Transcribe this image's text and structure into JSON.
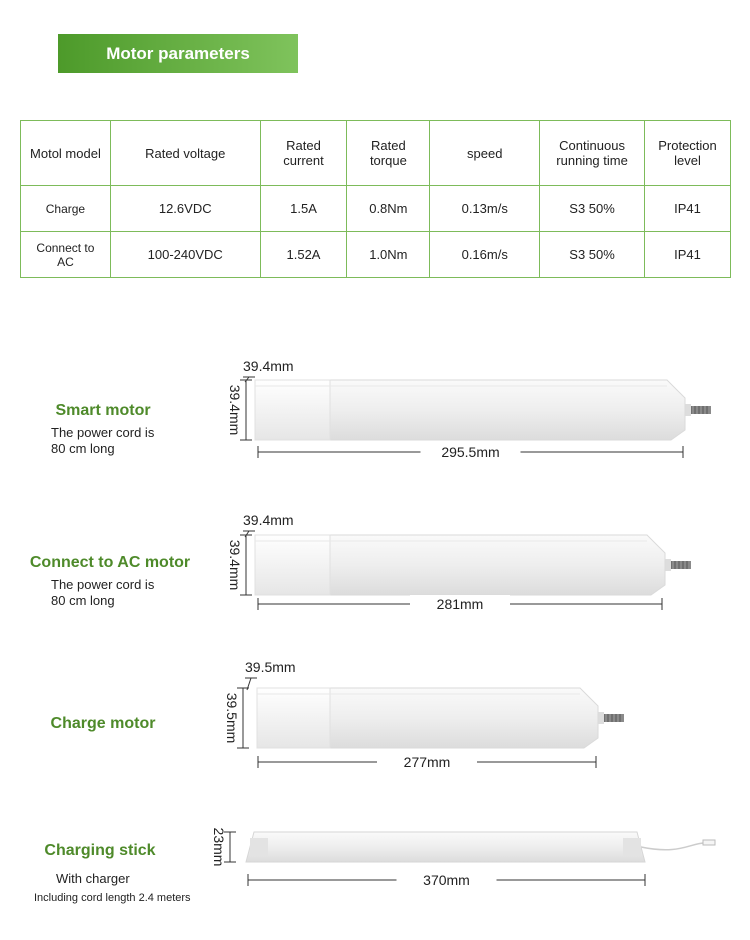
{
  "header": {
    "title": "Motor parameters"
  },
  "table": {
    "columns": [
      "Motol model",
      "Rated voltage",
      "Rated current",
      "Rated torque",
      "speed",
      "Continuous running time",
      "Protection level"
    ],
    "rows": [
      [
        "Charge",
        "12.6VDC",
        "1.5A",
        "0.8Nm",
        "0.13m/s",
        "S3 50%",
        "IP41"
      ],
      [
        "Connect to AC",
        "100-240VDC",
        "1.52A",
        "1.0Nm",
        "0.16m/s",
        "S3 50%",
        "IP41"
      ]
    ]
  },
  "products": [
    {
      "name": "Smart motor",
      "notes": [
        "The power cord is",
        "80 cm long"
      ],
      "width": "39.4mm",
      "height": "39.4mm",
      "length": "295.5mm"
    },
    {
      "name": "Connect to AC motor",
      "notes": [
        "The power cord is",
        "80 cm long"
      ],
      "width": "39.4mm",
      "height": "39.4mm",
      "length": "281mm"
    },
    {
      "name": "Charge  motor",
      "width": "39.5mm",
      "height": "39.5mm",
      "length": "277mm"
    },
    {
      "name": "Charging stick",
      "notes": [
        "With charger",
        "Including cord length 2.4 meters"
      ],
      "height": "23mm",
      "length": "370mm"
    }
  ]
}
